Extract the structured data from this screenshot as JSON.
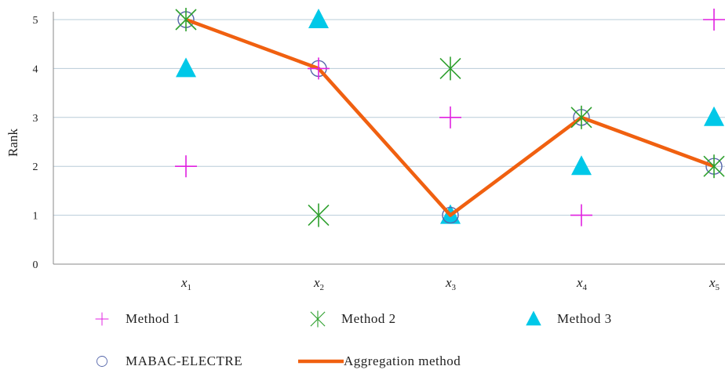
{
  "chart_data": {
    "type": "scatter",
    "ylabel": "Rank",
    "ylim": [
      0,
      5
    ],
    "yticks": [
      "0",
      "1",
      "2",
      "3",
      "4",
      "5"
    ],
    "categories": [
      {
        "base": "x",
        "sub": "1"
      },
      {
        "base": "x",
        "sub": "2"
      },
      {
        "base": "x",
        "sub": "3"
      },
      {
        "base": "x",
        "sub": "4"
      },
      {
        "base": "x",
        "sub": "5"
      }
    ],
    "grid": true,
    "legend_position": "bottom",
    "series": [
      {
        "name": "Method 1",
        "marker": "plus",
        "color": "#e020e0",
        "values": [
          2,
          4,
          3,
          1,
          5
        ]
      },
      {
        "name": "Method 2",
        "marker": "asterisk",
        "color": "#2ea02e",
        "values": [
          5,
          1,
          4,
          3,
          2
        ]
      },
      {
        "name": "Method 3",
        "marker": "triangle",
        "color": "#00c8e8",
        "values": [
          4,
          5,
          1,
          2,
          3
        ]
      },
      {
        "name": "MABAC-ELECTRE",
        "marker": "circle",
        "color": "#5566aa",
        "values": [
          5,
          4,
          1,
          3,
          2
        ]
      },
      {
        "name": "Aggregation method",
        "marker": "line",
        "color": "#f06010",
        "values": [
          5,
          4,
          1,
          3,
          2
        ]
      }
    ]
  }
}
